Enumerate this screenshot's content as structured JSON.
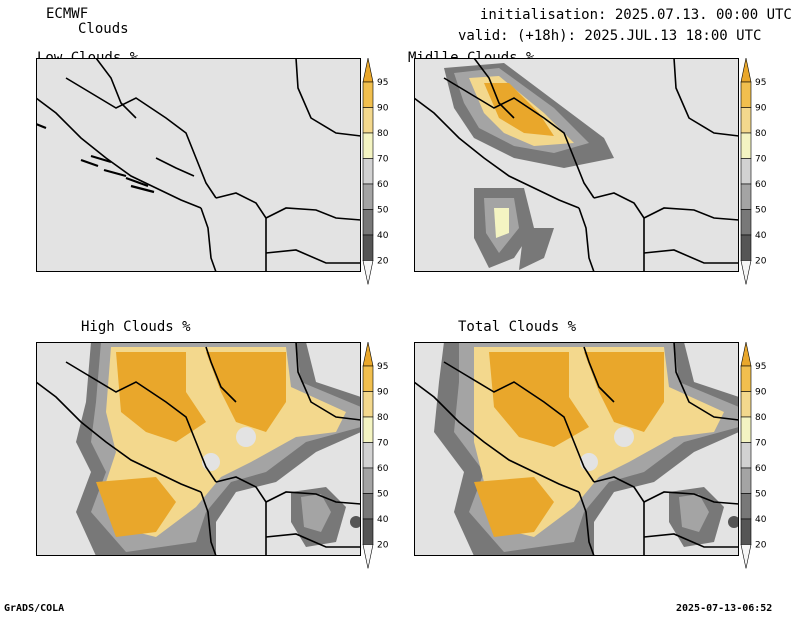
{
  "header": {
    "model": "ECMWF",
    "product": "Clouds",
    "init": "initialisation: 2025.07.13. 00:00 UTC",
    "valid": "valid: (+18h): 2025.JUL.13 18:00 UTC"
  },
  "panels": [
    {
      "title": "Low Clouds %"
    },
    {
      "title": "Midlle Clouds %"
    },
    {
      "title": "High Clouds %"
    },
    {
      "title": "Total Clouds %"
    }
  ],
  "colorbar": {
    "ticks": [
      "95",
      "90",
      "80",
      "70",
      "60",
      "50",
      "40",
      "20"
    ],
    "colors": [
      "#e9a72b",
      "#f1bf4e",
      "#f3d88d",
      "#f4f4c2",
      "#d2d2d2",
      "#a4a4a4",
      "#787878",
      "#555555",
      "#f6f6f6"
    ]
  },
  "footer": {
    "left": "GrADS/COLA",
    "right": "2025-07-13-06:52"
  },
  "colors": {
    "background_field": "#e3e3e3",
    "borders": "#000000"
  }
}
